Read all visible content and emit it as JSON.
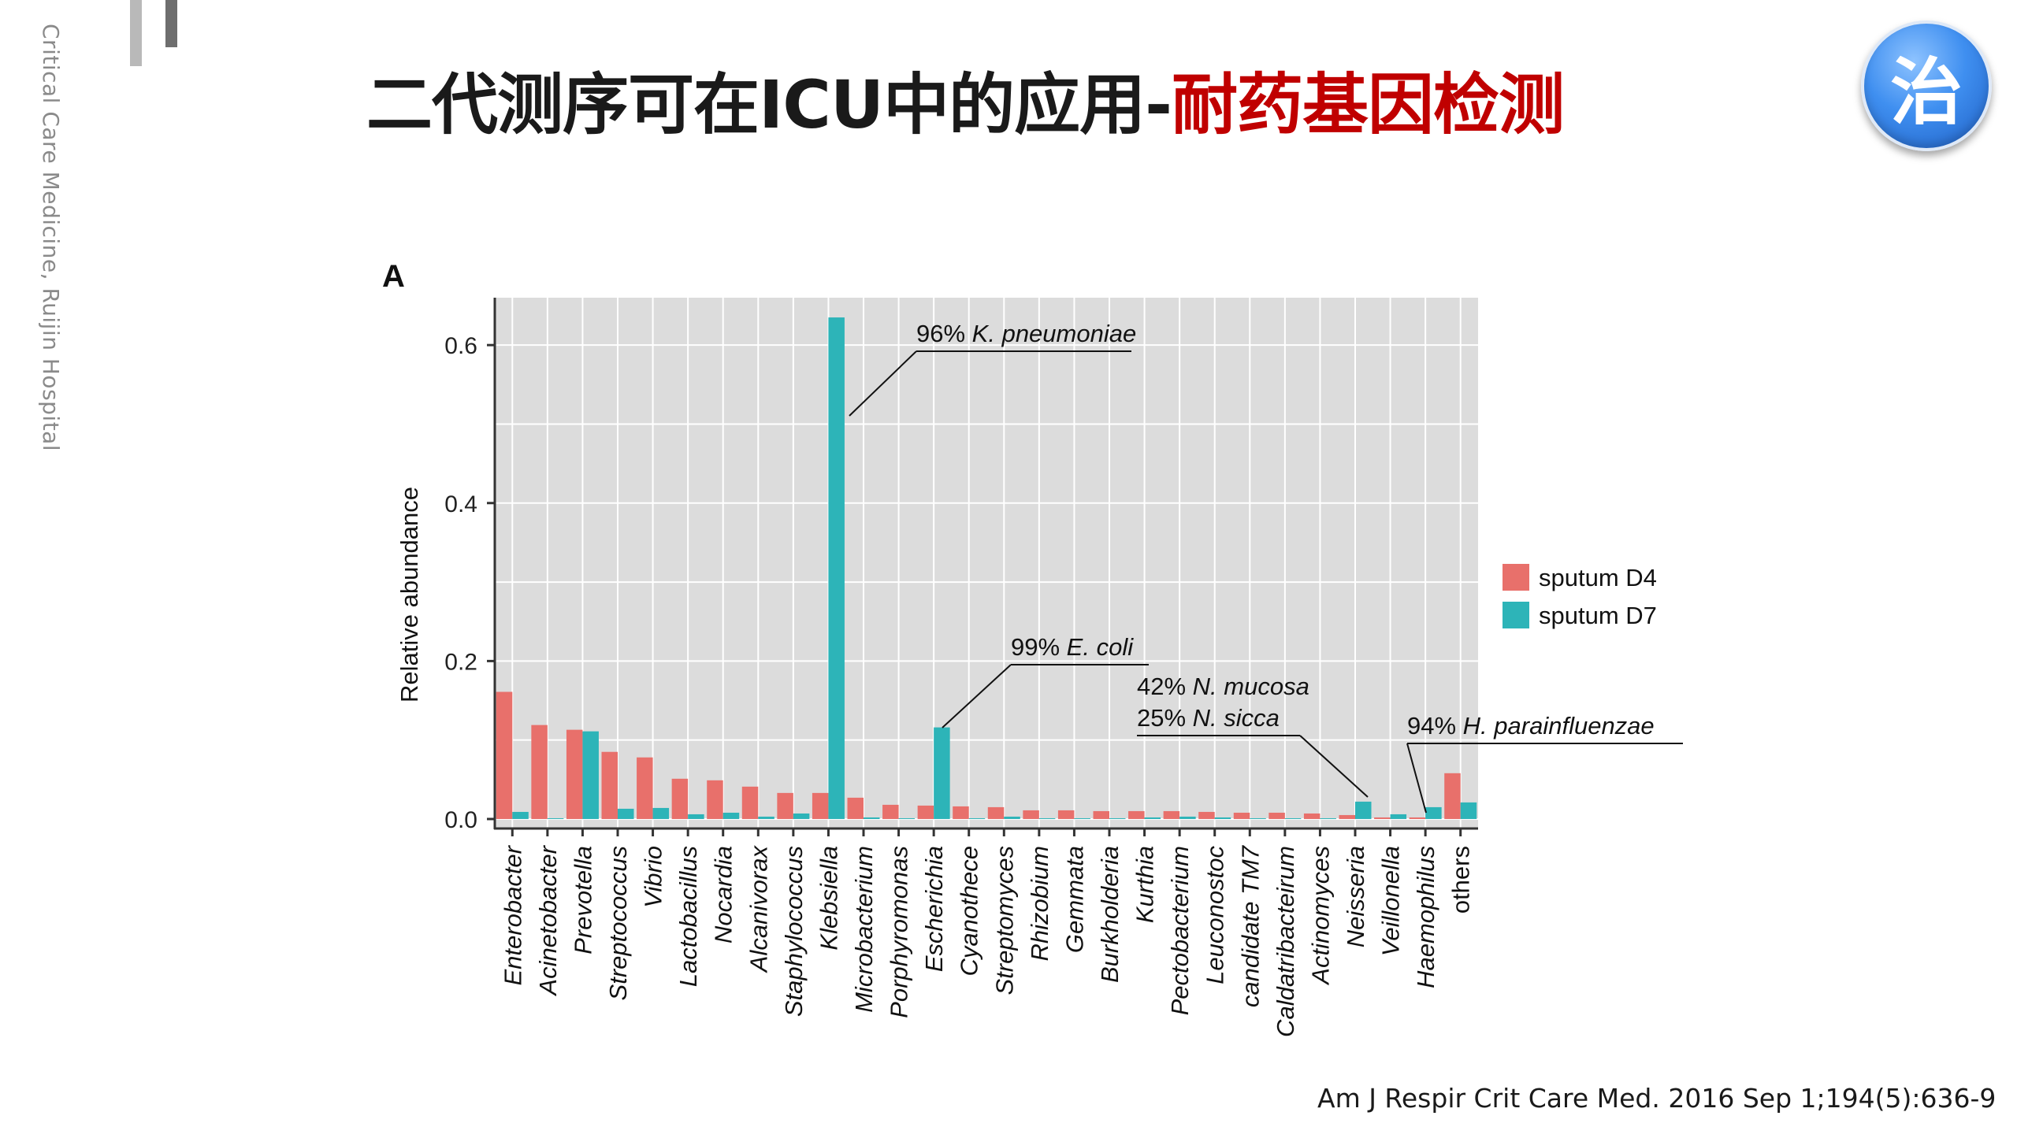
{
  "side_caption": "Critical Care Medicine, Ruijin Hospital",
  "title": {
    "main": "二代测序可在ICU中的应用-",
    "accent": "耐药基因检测"
  },
  "badge": "治",
  "citation": "Am J Respir Crit Care Med. 2016 Sep 1;194(5):636-9",
  "colors": {
    "d4": "#e8706b",
    "d7": "#2db4b8",
    "panel": "#dcdcdc",
    "accent_title": "#c00000"
  },
  "chart_data": {
    "type": "bar",
    "panel_label": "A",
    "ylabel": "Relative abundance",
    "xlabel": "",
    "ylim": [
      -0.012,
      0.66
    ],
    "yticks": [
      0.0,
      0.2,
      0.4,
      0.6
    ],
    "ytick_labels": [
      "0.0",
      "0.2",
      "0.4",
      "0.6"
    ],
    "grid": true,
    "legend_position": "right",
    "categories": [
      "Enterobacter",
      "Acinetobacter",
      "Prevotella",
      "Streptococcus",
      "Vibrio",
      "Lactobacillus",
      "Nocardia",
      "Alcanivorax",
      "Staphylococcus",
      "Klebsiella",
      "Microbacterium",
      "Porphyromonas",
      "Escherichia",
      "Cyanothece",
      "Streptomyces",
      "Rhizobium",
      "Gemmata",
      "Burkholderia",
      "Kurthia",
      "Pectobacterium",
      "Leuconostoc",
      "candidate TM7",
      "Caldatribacteirum",
      "Actinomyces",
      "Neisseria",
      "Veillonella",
      "Haemophilus",
      "others"
    ],
    "series": [
      {
        "name": "sputum D4",
        "values": [
          0.161,
          0.119,
          0.113,
          0.085,
          0.078,
          0.051,
          0.049,
          0.041,
          0.033,
          0.033,
          0.027,
          0.018,
          0.017,
          0.016,
          0.015,
          0.011,
          0.011,
          0.01,
          0.01,
          0.01,
          0.009,
          0.008,
          0.008,
          0.007,
          0.005,
          0.002,
          0.002,
          0.058
        ]
      },
      {
        "name": "sputum D7",
        "values": [
          0.009,
          0.001,
          0.111,
          0.013,
          0.014,
          0.006,
          0.008,
          0.003,
          0.007,
          0.635,
          0.002,
          0.001,
          0.116,
          0.001,
          0.003,
          0.001,
          0.001,
          0.001,
          0.002,
          0.003,
          0.002,
          0.001,
          0.001,
          0.001,
          0.022,
          0.006,
          0.015,
          0.021
        ]
      }
    ],
    "annotations": [
      {
        "lines": [
          {
            "prefix": "96% ",
            "italic": "K. pneumoniae"
          }
        ],
        "target_category": "Klebsiella"
      },
      {
        "lines": [
          {
            "prefix": "99% ",
            "italic": "E. coli"
          }
        ],
        "target_category": "Escherichia"
      },
      {
        "lines": [
          {
            "prefix": "42% ",
            "italic": "N. mucosa"
          },
          {
            "prefix": "25% ",
            "italic": "N. sicca"
          }
        ],
        "target_category": "Neisseria"
      },
      {
        "lines": [
          {
            "prefix": "94% ",
            "italic": "H. parainfluenzae"
          }
        ],
        "target_category": "Haemophilus"
      }
    ]
  }
}
